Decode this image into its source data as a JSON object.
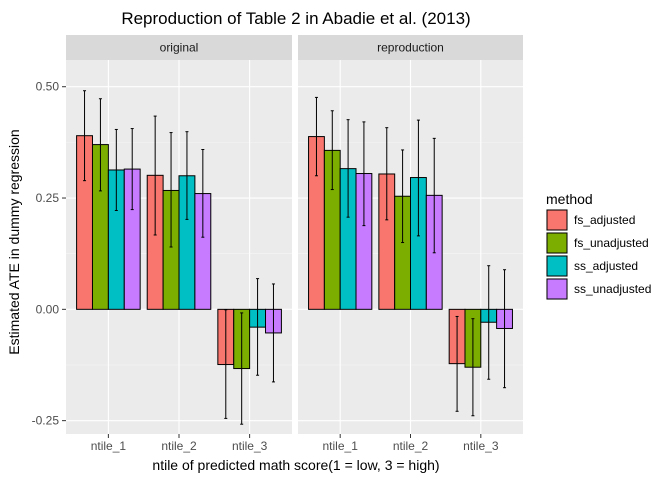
{
  "chart_data": {
    "type": "bar",
    "title": "Reproduction of Table 2 in Abadie et al. (2013)",
    "xlabel": "ntile of predicted math score(1 = low, 3 = high)",
    "ylabel": "Estimated ATE in dummy regression",
    "ylim": [
      -0.28,
      0.56
    ],
    "yticks": [
      -0.25,
      0.0,
      0.25,
      0.5
    ],
    "ytick_labels": [
      "-0.25",
      "0.00",
      "0.25",
      "0.50"
    ],
    "categories": [
      "ntile_1",
      "ntile_2",
      "ntile_3"
    ],
    "grid": true,
    "legend": {
      "title": "method",
      "position": "right",
      "entries": [
        "fs_adjusted",
        "fs_unadjusted",
        "ss_adjusted",
        "ss_unadjusted"
      ]
    },
    "colors": {
      "fs_adjusted": "#F8766D",
      "fs_unadjusted": "#7CAE00",
      "ss_adjusted": "#00BFC4",
      "ss_unadjusted": "#C77CFF"
    },
    "panels": [
      {
        "label": "original",
        "series": [
          {
            "name": "fs_adjusted",
            "values": [
              0.39,
              0.301,
              -0.124
            ],
            "lower": [
              0.289,
              0.167,
              -0.245
            ],
            "upper": [
              0.491,
              0.434,
              -0.001
            ]
          },
          {
            "name": "fs_unadjusted",
            "values": [
              0.37,
              0.267,
              -0.133
            ],
            "lower": [
              0.266,
              0.14,
              -0.258
            ],
            "upper": [
              0.473,
              0.397,
              -0.008
            ]
          },
          {
            "name": "ss_adjusted",
            "values": [
              0.313,
              0.3,
              -0.04
            ],
            "lower": [
              0.222,
              0.202,
              -0.148
            ],
            "upper": [
              0.404,
              0.399,
              0.069
            ]
          },
          {
            "name": "ss_unadjusted",
            "values": [
              0.315,
              0.26,
              -0.053
            ],
            "lower": [
              0.224,
              0.162,
              -0.163
            ],
            "upper": [
              0.406,
              0.359,
              0.057
            ]
          }
        ]
      },
      {
        "label": "reproduction",
        "series": [
          {
            "name": "fs_adjusted",
            "values": [
              0.388,
              0.304,
              -0.122
            ],
            "lower": [
              0.3,
              0.201,
              -0.229
            ],
            "upper": [
              0.476,
              0.408,
              -0.016
            ]
          },
          {
            "name": "fs_unadjusted",
            "values": [
              0.357,
              0.254,
              -0.13
            ],
            "lower": [
              0.269,
              0.15,
              -0.239
            ],
            "upper": [
              0.446,
              0.358,
              -0.021
            ]
          },
          {
            "name": "ss_adjusted",
            "values": [
              0.316,
              0.296,
              -0.029
            ],
            "lower": [
              0.207,
              0.165,
              -0.157
            ],
            "upper": [
              0.426,
              0.425,
              0.098
            ]
          },
          {
            "name": "ss_unadjusted",
            "values": [
              0.305,
              0.256,
              -0.043
            ],
            "lower": [
              0.188,
              0.127,
              -0.176
            ],
            "upper": [
              0.421,
              0.384,
              0.089
            ]
          }
        ]
      }
    ]
  }
}
